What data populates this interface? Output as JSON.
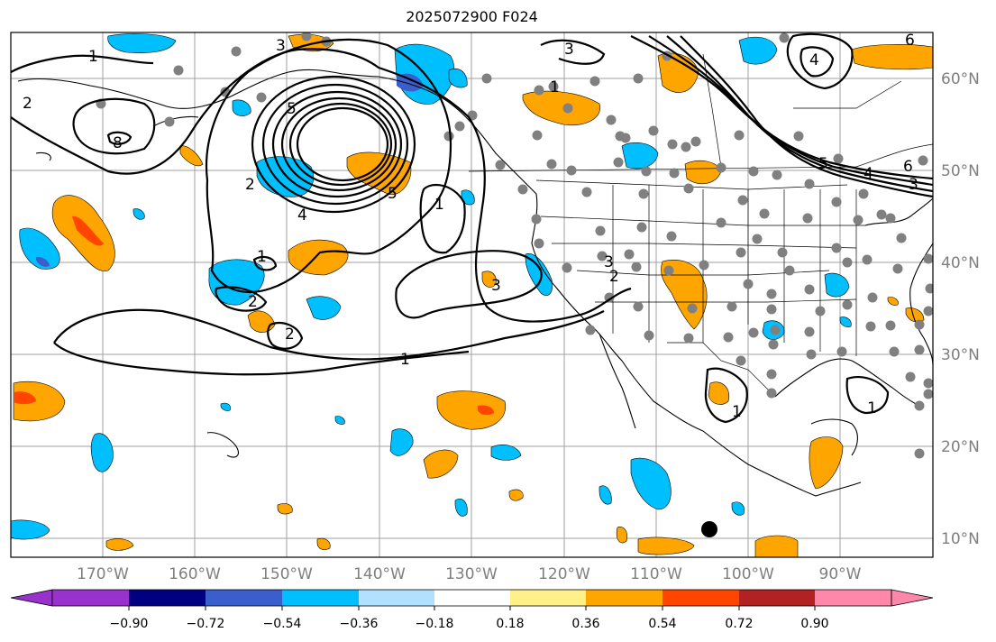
{
  "title": "2025072900 F024",
  "lat_labels": [
    "60°N",
    "50°N",
    "40°N",
    "30°N",
    "20°N",
    "10°N"
  ],
  "lon_labels": [
    "170°W",
    "160°W",
    "150°W",
    "140°W",
    "130°W",
    "120°W",
    "110°W",
    "100°W",
    "90°W"
  ],
  "contour_labels": [
    "1",
    "1",
    "1",
    "1",
    "1",
    "1",
    "1",
    "2",
    "2",
    "2",
    "2",
    "2",
    "3",
    "3",
    "3",
    "3",
    "3",
    "4",
    "4",
    "4",
    "5",
    "5",
    "5",
    "6",
    "6",
    "8"
  ],
  "colorbar": {
    "tick_labels": [
      "−0.90",
      "−0.72",
      "−0.54",
      "−0.36",
      "−0.18",
      "0.18",
      "0.36",
      "0.54",
      "0.72",
      "0.90"
    ],
    "colors": [
      "#9932cc",
      "#000080",
      "#3a5fcd",
      "#00bfff",
      "#b0e2ff",
      "#ffffff",
      "#fff08a",
      "#ffa500",
      "#ff4500",
      "#b22222",
      "#ff88aa"
    ]
  },
  "legend_colors": {
    "orange": "#ffa500",
    "yellow": "#fff08a",
    "red": "#ff4500",
    "blue": "#00bfff",
    "lightblue": "#b0e2ff",
    "midblue": "#3a5fcd",
    "station": "#808080"
  }
}
